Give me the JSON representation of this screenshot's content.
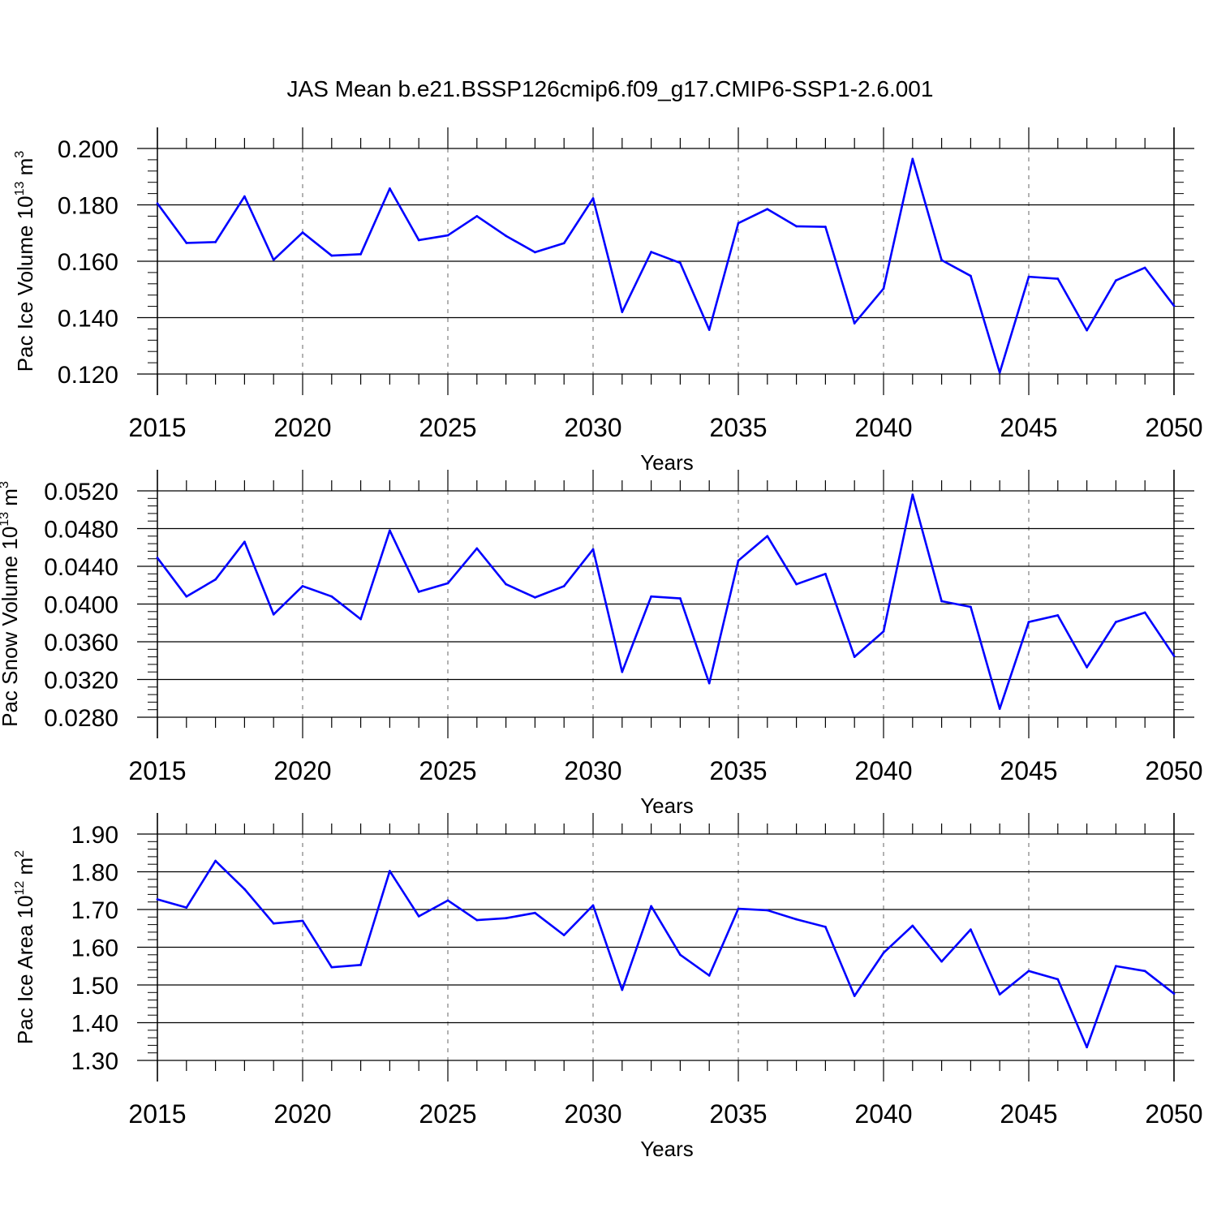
{
  "title": "JAS Mean b.e21.BSSP126cmip6.f09_g17.CMIP6-SSP1-2.6.001",
  "colors": {
    "line": "#0000ff",
    "axis": "#000000",
    "grid": "#808080"
  },
  "chart_data": [
    {
      "type": "line",
      "ylabel": "Pac Ice Volume 10",
      "ylabel_exp": "13",
      "ylabel_unit": " m",
      "ylabel_unit_exp": "3",
      "xlabel": "Years",
      "xlim": [
        2015,
        2050
      ],
      "ylim": [
        0.12,
        0.2
      ],
      "yticks": [
        0.12,
        0.14,
        0.16,
        0.18,
        0.2
      ],
      "ytick_labels": [
        "0.120",
        "0.140",
        "0.160",
        "0.180",
        "0.200"
      ],
      "xticks": [
        2015,
        2020,
        2025,
        2030,
        2035,
        2040,
        2045,
        2050
      ],
      "xtick_labels": [
        "2015",
        "2020",
        "2025",
        "2030",
        "2035",
        "2040",
        "2045",
        "2050"
      ],
      "grid": "vertical dashed at major x ticks",
      "x": [
        2015,
        2016,
        2017,
        2018,
        2019,
        2020,
        2021,
        2022,
        2023,
        2024,
        2025,
        2026,
        2027,
        2028,
        2029,
        2030,
        2031,
        2032,
        2033,
        2034,
        2035,
        2036,
        2037,
        2038,
        2039,
        2040,
        2041,
        2042,
        2043,
        2044,
        2045,
        2046,
        2047,
        2048,
        2049,
        2050
      ],
      "y": [
        0.1805,
        0.1665,
        0.1668,
        0.183,
        0.1605,
        0.1702,
        0.162,
        0.1625,
        0.1858,
        0.1675,
        0.1692,
        0.176,
        0.169,
        0.1632,
        0.1664,
        0.1823,
        0.142,
        0.1633,
        0.1594,
        0.1357,
        0.1735,
        0.1785,
        0.1724,
        0.1722,
        0.138,
        0.1503,
        0.1963,
        0.1604,
        0.1548,
        0.1205,
        0.1545,
        0.1538,
        0.1355,
        0.1532,
        0.1577,
        0.1442
      ]
    },
    {
      "type": "line",
      "ylabel": "Pac Snow Volume 10",
      "ylabel_exp": "13",
      "ylabel_unit": " m",
      "ylabel_unit_exp": "3",
      "xlabel": "Years",
      "xlim": [
        2015,
        2050
      ],
      "ylim": [
        0.028,
        0.052
      ],
      "yticks": [
        0.028,
        0.032,
        0.036,
        0.04,
        0.044,
        0.048,
        0.052
      ],
      "ytick_labels": [
        "0.0280",
        "0.0320",
        "0.0360",
        "0.0400",
        "0.0440",
        "0.0480",
        "0.0520"
      ],
      "xticks": [
        2015,
        2020,
        2025,
        2030,
        2035,
        2040,
        2045,
        2050
      ],
      "xtick_labels": [
        "2015",
        "2020",
        "2025",
        "2030",
        "2035",
        "2040",
        "2045",
        "2050"
      ],
      "grid": "vertical dashed at major x ticks",
      "x": [
        2015,
        2016,
        2017,
        2018,
        2019,
        2020,
        2021,
        2022,
        2023,
        2024,
        2025,
        2026,
        2027,
        2028,
        2029,
        2030,
        2031,
        2032,
        2033,
        2034,
        2035,
        2036,
        2037,
        2038,
        2039,
        2040,
        2041,
        2042,
        2043,
        2044,
        2045,
        2046,
        2047,
        2048,
        2049,
        2050
      ],
      "y": [
        0.0449,
        0.0408,
        0.0426,
        0.0466,
        0.0389,
        0.0419,
        0.0408,
        0.0384,
        0.0478,
        0.0413,
        0.0422,
        0.0459,
        0.0421,
        0.0407,
        0.0419,
        0.0458,
        0.0328,
        0.0408,
        0.0406,
        0.0316,
        0.0446,
        0.0472,
        0.0421,
        0.0432,
        0.0344,
        0.0371,
        0.0516,
        0.0403,
        0.0397,
        0.0289,
        0.0381,
        0.0388,
        0.0333,
        0.0381,
        0.0391,
        0.0345
      ]
    },
    {
      "type": "line",
      "ylabel": "Pac Ice Area 10",
      "ylabel_exp": "12",
      "ylabel_unit": " m",
      "ylabel_unit_exp": "2",
      "xlabel": "Years",
      "xlim": [
        2015,
        2050
      ],
      "ylim": [
        1.3,
        1.9
      ],
      "yticks": [
        1.3,
        1.4,
        1.5,
        1.6,
        1.7,
        1.8,
        1.9
      ],
      "ytick_labels": [
        "1.30",
        "1.40",
        "1.50",
        "1.60",
        "1.70",
        "1.80",
        "1.90"
      ],
      "xticks": [
        2015,
        2020,
        2025,
        2030,
        2035,
        2040,
        2045,
        2050
      ],
      "xtick_labels": [
        "2015",
        "2020",
        "2025",
        "2030",
        "2035",
        "2040",
        "2045",
        "2050"
      ],
      "grid": "vertical dashed at major x ticks",
      "x": [
        2015,
        2016,
        2017,
        2018,
        2019,
        2020,
        2021,
        2022,
        2023,
        2024,
        2025,
        2026,
        2027,
        2028,
        2029,
        2030,
        2031,
        2032,
        2033,
        2034,
        2035,
        2036,
        2037,
        2038,
        2039,
        2040,
        2041,
        2042,
        2043,
        2044,
        2045,
        2046,
        2047,
        2048,
        2049,
        2050
      ],
      "y": [
        1.727,
        1.705,
        1.829,
        1.754,
        1.663,
        1.67,
        1.547,
        1.553,
        1.802,
        1.682,
        1.724,
        1.672,
        1.677,
        1.691,
        1.632,
        1.711,
        1.487,
        1.709,
        1.58,
        1.525,
        1.702,
        1.698,
        1.674,
        1.654,
        1.471,
        1.585,
        1.657,
        1.562,
        1.647,
        1.475,
        1.537,
        1.515,
        1.335,
        1.55,
        1.537,
        1.477
      ]
    }
  ]
}
